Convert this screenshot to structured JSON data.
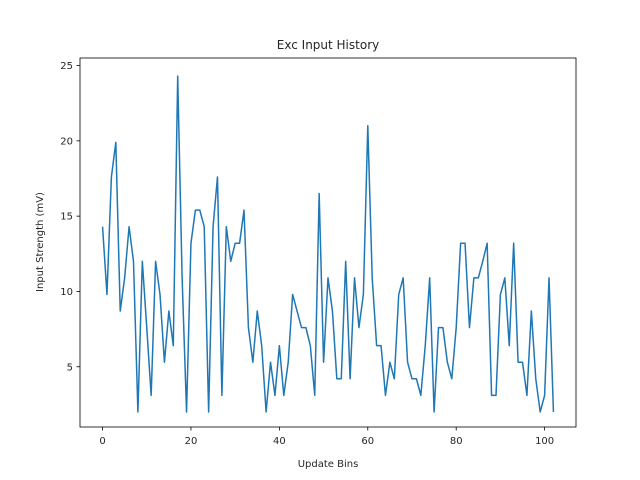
{
  "chart_data": {
    "type": "line",
    "title": "Exc Input History",
    "xlabel": "Update Bins",
    "ylabel": "Input Strength (mV)",
    "xlim": [
      -5.1,
      107.1
    ],
    "ylim": [
      1.0,
      25.5
    ],
    "xticks": [
      0,
      20,
      40,
      60,
      80,
      100
    ],
    "yticks": [
      5,
      10,
      15,
      20,
      25
    ],
    "grid": false,
    "line_color": "#1f77b4",
    "series": [
      {
        "x": [
          0,
          1,
          2,
          3,
          4,
          5,
          6,
          7,
          8,
          9,
          10,
          11,
          12,
          13,
          14,
          15,
          16,
          17,
          18,
          19,
          20,
          21,
          22,
          23,
          24,
          25,
          26,
          27,
          28,
          29,
          30,
          31,
          32,
          33,
          34,
          35,
          36,
          37,
          38,
          39,
          40,
          41,
          42,
          43,
          44,
          45,
          46,
          47,
          48,
          49,
          50,
          51,
          52,
          53,
          54,
          55,
          56,
          57,
          58,
          59,
          60,
          61,
          62,
          63,
          64,
          65,
          66,
          67,
          68,
          69,
          70,
          71,
          72,
          73,
          74,
          75,
          76,
          77,
          78,
          79,
          80,
          81,
          82,
          83,
          84,
          85,
          86,
          87,
          88,
          89,
          90,
          91,
          92,
          93,
          94,
          95,
          96,
          97,
          98,
          99,
          100,
          101,
          102
        ],
        "values": [
          14.3,
          9.8,
          17.6,
          19.9,
          8.7,
          10.9,
          14.3,
          12.0,
          2.0,
          12.0,
          7.6,
          3.1,
          12.0,
          9.8,
          5.3,
          8.7,
          6.4,
          24.3,
          10.9,
          2.0,
          13.2,
          15.4,
          15.4,
          14.3,
          2.0,
          14.3,
          17.6,
          3.1,
          14.3,
          12.0,
          13.2,
          13.2,
          15.4,
          7.6,
          5.3,
          8.7,
          6.4,
          2.0,
          5.3,
          3.1,
          6.4,
          3.1,
          5.3,
          9.8,
          8.7,
          7.6,
          7.6,
          6.4,
          3.1,
          16.5,
          5.3,
          10.9,
          8.7,
          4.2,
          4.2,
          12.0,
          4.2,
          10.9,
          7.6,
          9.8,
          21.0,
          10.9,
          6.4,
          6.4,
          3.1,
          5.3,
          4.2,
          9.8,
          10.9,
          5.3,
          4.2,
          4.2,
          3.1,
          6.4,
          10.9,
          2.0,
          7.6,
          7.6,
          5.3,
          4.2,
          7.6,
          13.2,
          13.2,
          7.6,
          10.9,
          10.9,
          12.0,
          13.2,
          3.1,
          3.1,
          9.8,
          10.9,
          6.4,
          13.2,
          5.3,
          5.3,
          3.1,
          8.7,
          4.2,
          2.0,
          3.1,
          10.9,
          2.0
        ]
      }
    ]
  }
}
